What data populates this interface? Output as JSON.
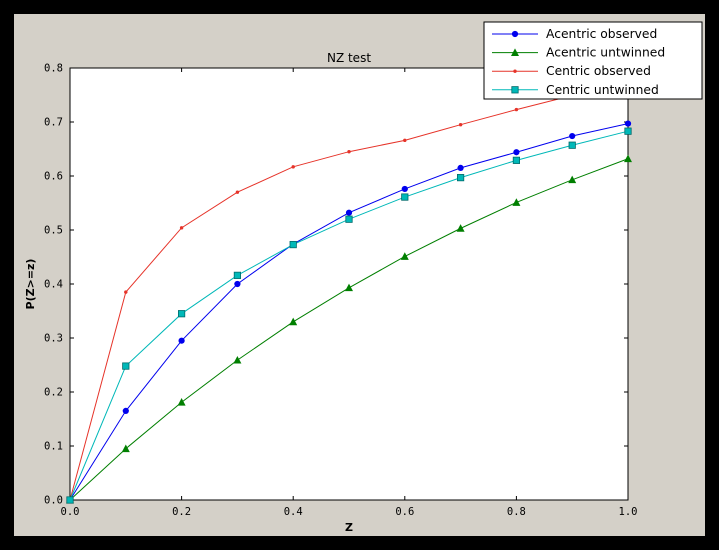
{
  "chart_data": {
    "type": "line",
    "title": "NZ test",
    "xlabel": "Z",
    "ylabel": "P(Z>=z)",
    "xlim": [
      0,
      1.0
    ],
    "ylim": [
      0,
      0.8
    ],
    "xticks": [
      0.0,
      0.2,
      0.4,
      0.6,
      0.8,
      1.0
    ],
    "yticks": [
      0.0,
      0.1,
      0.2,
      0.3,
      0.4,
      0.5,
      0.6,
      0.7,
      0.8
    ],
    "grid": false,
    "legend_position": "upper right",
    "x": [
      0.0,
      0.1,
      0.2,
      0.3,
      0.4,
      0.5,
      0.6,
      0.7,
      0.8,
      0.9,
      1.0
    ],
    "series": [
      {
        "name": "Acentric observed",
        "color": "#0000ee",
        "marker": "circle",
        "values": [
          0.0,
          0.165,
          0.295,
          0.4,
          0.474,
          0.532,
          0.576,
          0.615,
          0.644,
          0.674,
          0.697
        ]
      },
      {
        "name": "Acentric untwinned",
        "color": "#007f00",
        "marker": "triangle",
        "values": [
          0.0,
          0.095,
          0.181,
          0.259,
          0.33,
          0.393,
          0.451,
          0.503,
          0.551,
          0.593,
          0.632
        ]
      },
      {
        "name": "Centric observed",
        "color": "#e63329",
        "marker": "dot",
        "values": [
          0.0,
          0.385,
          0.504,
          0.57,
          0.617,
          0.645,
          0.666,
          0.695,
          0.723,
          0.749,
          0.775
        ]
      },
      {
        "name": "Centric untwinned",
        "color": "#00b8b8",
        "marker": "square",
        "marker_edge": "#006a6a",
        "values": [
          0.0,
          0.248,
          0.345,
          0.416,
          0.473,
          0.52,
          0.561,
          0.597,
          0.629,
          0.657,
          0.683
        ]
      }
    ],
    "colors": {
      "figure_background": "#d4d0c8",
      "plot_background": "#ffffff",
      "frame": "#000000",
      "outer_background": "#000000"
    }
  }
}
